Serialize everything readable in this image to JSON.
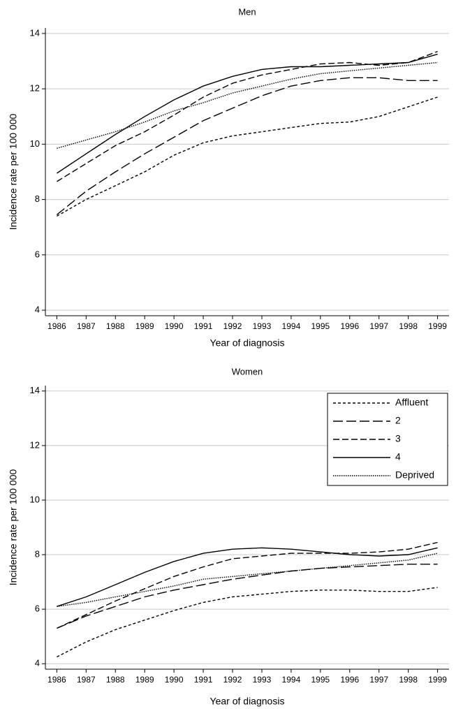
{
  "chart_data": [
    {
      "type": "line",
      "title": "Men",
      "xlabel": "Year of diagnosis",
      "ylabel": "Incidence rate per 100 000",
      "x": [
        1986,
        1987,
        1988,
        1989,
        1990,
        1991,
        1992,
        1993,
        1994,
        1995,
        1996,
        1997,
        1998,
        1999
      ],
      "xlim": [
        1985.8,
        1999.2
      ],
      "xticks": [
        1986,
        1987,
        1988,
        1989,
        1990,
        1991,
        1992,
        1993,
        1994,
        1995,
        1996,
        1997,
        1998,
        1999
      ],
      "ylim": [
        3.8,
        14.2
      ],
      "yticks": [
        4,
        6,
        8,
        10,
        12,
        14
      ],
      "grid": true,
      "series": [
        {
          "color": "#000000",
          "style": "short-dash",
          "values": [
            7.4,
            8.0,
            8.5,
            9.0,
            9.6,
            10.05,
            10.3,
            10.45,
            10.6,
            10.75,
            10.8,
            11.0,
            11.35,
            11.7
          ]
        },
        {
          "color": "#000000",
          "style": "long-dash",
          "values": [
            7.45,
            8.3,
            9.0,
            9.65,
            10.25,
            10.85,
            11.3,
            11.75,
            12.1,
            12.3,
            12.4,
            12.4,
            12.3,
            12.3
          ]
        },
        {
          "color": "#000000",
          "style": "dash",
          "values": [
            8.65,
            9.3,
            9.95,
            10.45,
            11.05,
            11.7,
            12.2,
            12.5,
            12.7,
            12.9,
            12.95,
            12.85,
            12.95,
            13.35
          ]
        },
        {
          "color": "#000000",
          "style": "solid",
          "values": [
            8.95,
            9.65,
            10.35,
            11.0,
            11.6,
            12.1,
            12.45,
            12.7,
            12.8,
            12.8,
            12.85,
            12.9,
            12.95,
            13.25
          ]
        },
        {
          "color": "#000000",
          "style": "dotted",
          "values": [
            9.85,
            10.15,
            10.45,
            10.8,
            11.2,
            11.5,
            11.85,
            12.1,
            12.35,
            12.55,
            12.65,
            12.75,
            12.85,
            12.95
          ]
        }
      ]
    },
    {
      "type": "line",
      "title": "Women",
      "xlabel": "Year of diagnosis",
      "ylabel": "Incidence rate per 100 000",
      "x": [
        1986,
        1987,
        1988,
        1989,
        1990,
        1991,
        1992,
        1993,
        1994,
        1995,
        1996,
        1997,
        1998,
        1999
      ],
      "xlim": [
        1985.8,
        1999.2
      ],
      "xticks": [
        1986,
        1987,
        1988,
        1989,
        1990,
        1991,
        1992,
        1993,
        1994,
        1995,
        1996,
        1997,
        1998,
        1999
      ],
      "ylim": [
        3.8,
        14.2
      ],
      "yticks": [
        4,
        6,
        8,
        10,
        12,
        14
      ],
      "grid": true,
      "legend": "top-right",
      "series": [
        {
          "name": "Affluent",
          "color": "#000000",
          "style": "short-dash",
          "values": [
            4.25,
            4.8,
            5.25,
            5.6,
            5.95,
            6.25,
            6.45,
            6.55,
            6.65,
            6.7,
            6.7,
            6.65,
            6.65,
            6.8
          ]
        },
        {
          "name": "2",
          "color": "#000000",
          "style": "long-dash",
          "values": [
            5.3,
            5.75,
            6.1,
            6.45,
            6.7,
            6.9,
            7.1,
            7.25,
            7.4,
            7.5,
            7.55,
            7.6,
            7.65,
            7.65
          ]
        },
        {
          "name": "3",
          "color": "#000000",
          "style": "dash",
          "values": [
            5.3,
            5.8,
            6.3,
            6.75,
            7.2,
            7.55,
            7.85,
            7.95,
            8.05,
            8.05,
            8.05,
            8.1,
            8.2,
            8.45
          ]
        },
        {
          "name": "4",
          "color": "#000000",
          "style": "solid",
          "values": [
            6.1,
            6.45,
            6.9,
            7.35,
            7.75,
            8.05,
            8.2,
            8.25,
            8.2,
            8.1,
            8.0,
            7.95,
            8.0,
            8.25
          ]
        },
        {
          "name": "Deprived",
          "color": "#000000",
          "style": "dotted",
          "values": [
            6.1,
            6.25,
            6.45,
            6.65,
            6.85,
            7.1,
            7.2,
            7.3,
            7.4,
            7.5,
            7.6,
            7.7,
            7.8,
            8.05
          ]
        }
      ]
    }
  ]
}
